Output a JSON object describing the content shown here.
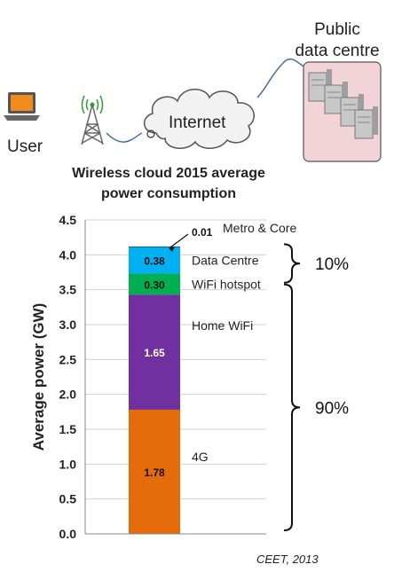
{
  "diagram": {
    "user_label": "User",
    "internet_label": "Internet",
    "public_dc_label_line1": "Public",
    "public_dc_label_line2": "data centre",
    "heading_line1": "Wireless cloud 2015 average",
    "heading_line2": "power consumption"
  },
  "chart_data": {
    "type": "bar",
    "stacked": true,
    "ylabel": "Average power  (GW)",
    "ylim": [
      0,
      4.5
    ],
    "yticks": [
      "0.0",
      "0.5",
      "1.0",
      "1.5",
      "2.0",
      "2.5",
      "3.0",
      "3.5",
      "4.0",
      "4.5"
    ],
    "grid": true,
    "series": [
      {
        "name": "4G",
        "value": 1.78,
        "label": "1.78",
        "color": "#e46c0a"
      },
      {
        "name": "Home WiFi",
        "value": 1.65,
        "label": "1.65",
        "color": "#7030a0"
      },
      {
        "name": "WiFi hotspot",
        "value": 0.3,
        "label": "0.30",
        "color": "#00b050"
      },
      {
        "name": "Data Centre",
        "value": 0.38,
        "label": "0.38",
        "color": "#00b0f0"
      },
      {
        "name": "Metro & Core",
        "value": 0.01,
        "label": "0.01",
        "color": "#1f4e79"
      }
    ],
    "brackets": [
      {
        "label": "10%"
      },
      {
        "label": "90%"
      }
    ],
    "source": "CEET, 2013"
  }
}
